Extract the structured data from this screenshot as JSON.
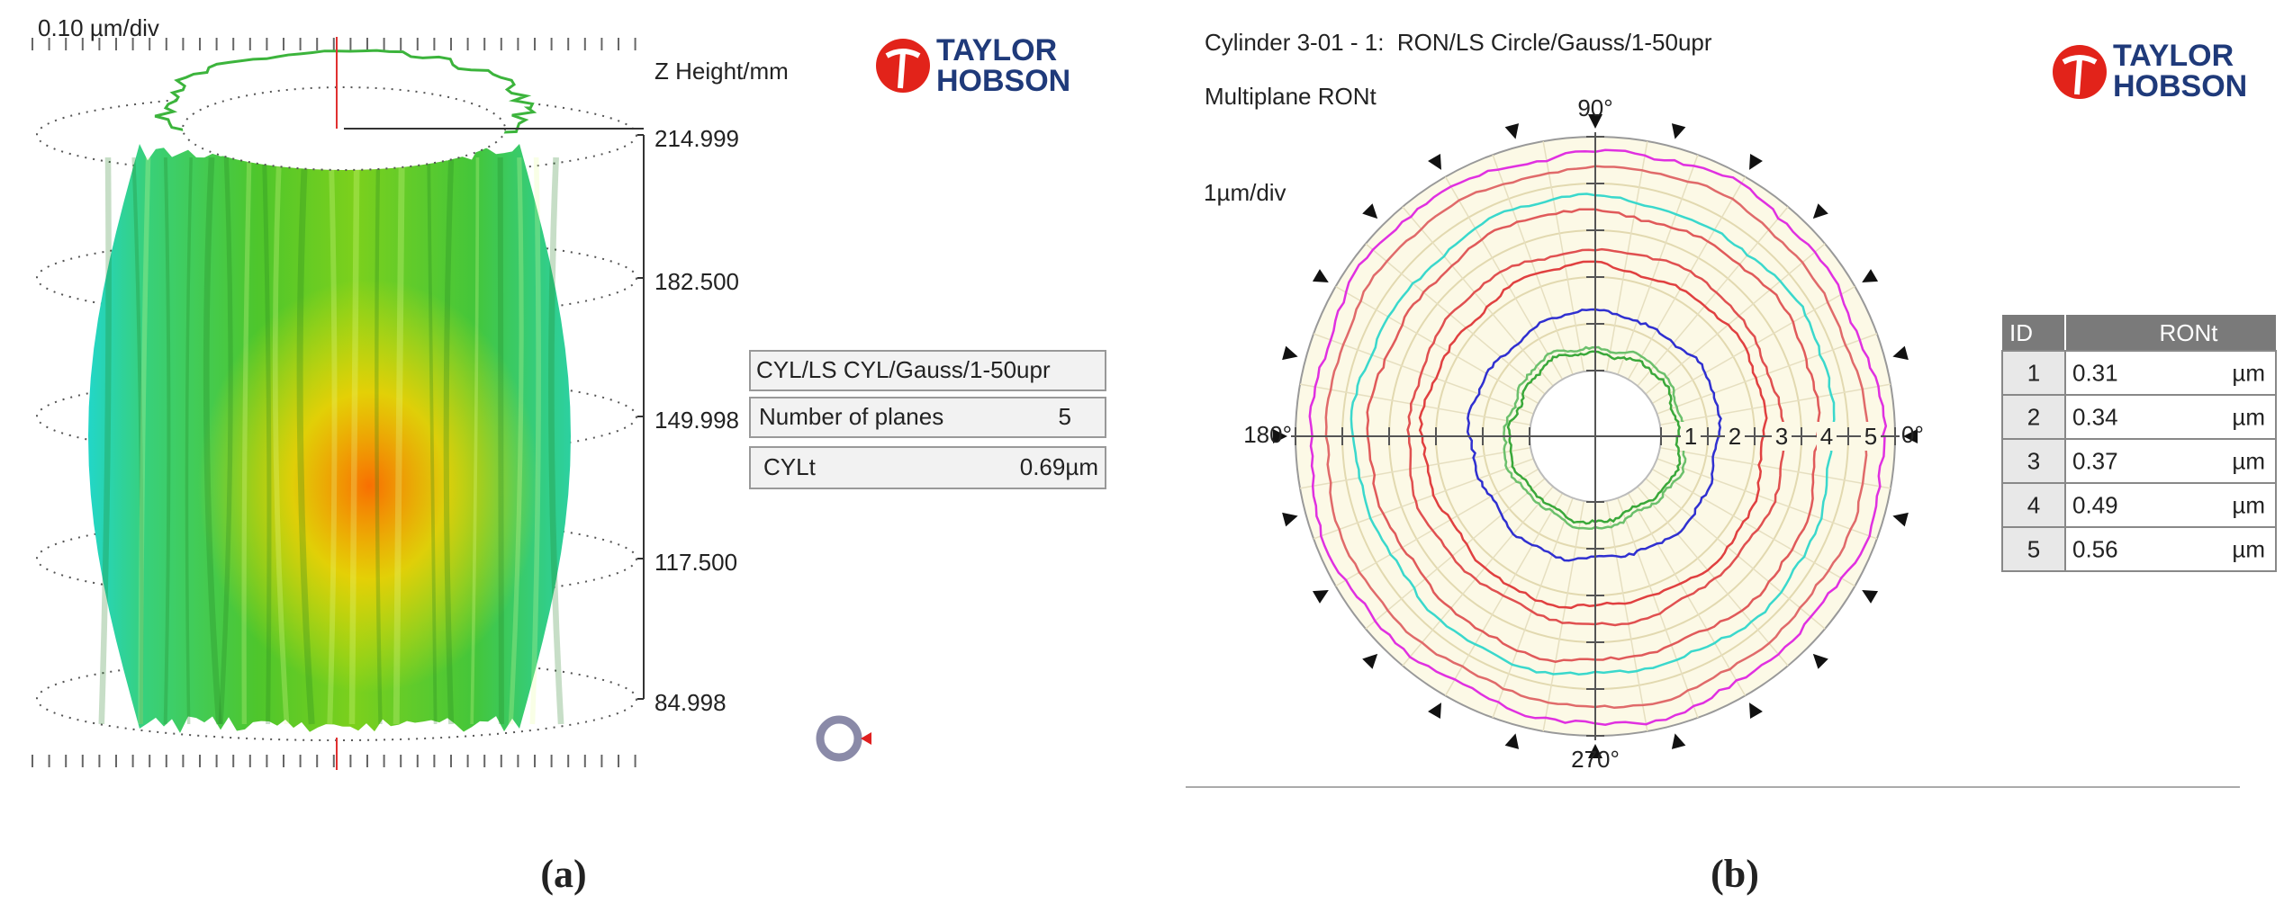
{
  "left_panel": {
    "scale": "0.10 µm/div",
    "logo": [
      "TAYLOR",
      "HOBSON"
    ],
    "z_axis": {
      "title": "Z Height/mm",
      "labels": [
        "214.999",
        "182.500",
        "149.998",
        "117.500",
        "84.998"
      ]
    },
    "info_box": {
      "title": "CYL/LS CYL/Gauss/1-50upr",
      "rows": [
        [
          "Number of planes",
          "5"
        ],
        [
          "CYLt",
          "0.69µm"
        ]
      ]
    },
    "caption": "(a)"
  },
  "right_panel": {
    "title": "Cylinder 3-01 - 1:  RON/LS Circle/Gauss/1-50upr",
    "subtitle": "Multiplane RONt",
    "scale": "1µm/div",
    "logo": [
      "TAYLOR",
      "HOBSON"
    ],
    "angle_labels": {
      "top": "90°",
      "left": "180°",
      "bottom": "270°",
      "right": "0°"
    },
    "ring_labels": [
      "1",
      "2",
      "3",
      "4",
      "5"
    ],
    "table": {
      "header": [
        "ID",
        "RONt"
      ],
      "rows": [
        [
          "1",
          "0.31",
          "µm"
        ],
        [
          "2",
          "0.34",
          "µm"
        ],
        [
          "3",
          "0.37",
          "µm"
        ],
        [
          "4",
          "0.49",
          "µm"
        ],
        [
          "5",
          "0.56",
          "µm"
        ]
      ]
    },
    "caption": "(b)"
  }
}
